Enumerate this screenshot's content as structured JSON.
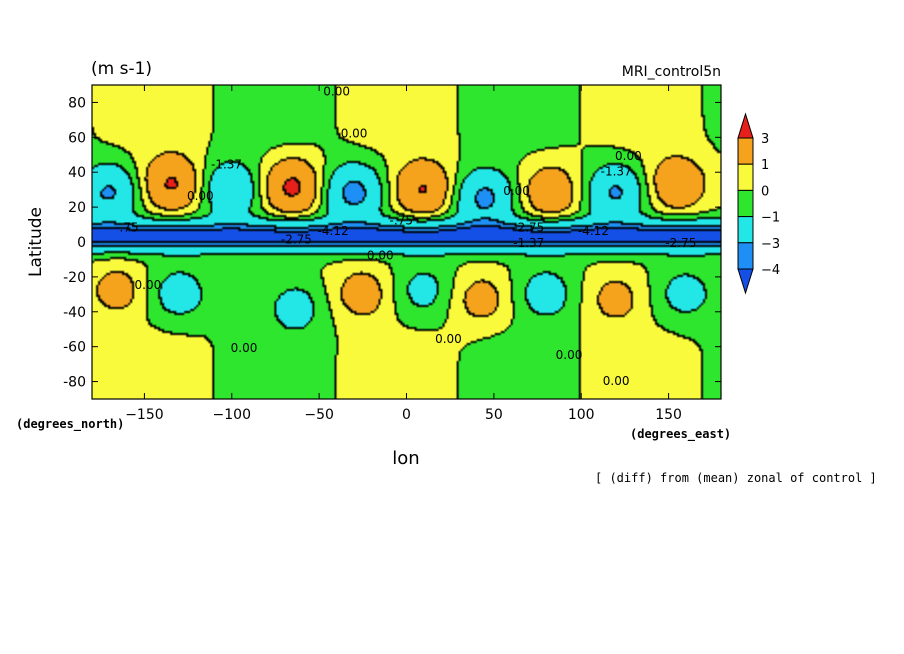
{
  "chart_data": {
    "type": "heatmap",
    "subtype": "filled-contour",
    "units_label": "(m s-1)",
    "title_right": "MRI_control5n",
    "xlabel": "lon",
    "ylabel": "Latitude",
    "x_units": "(degrees_east)",
    "y_units": "(degrees_north)",
    "footnote": "[ (diff) from (mean) zonal of control ]",
    "xlim": [
      -180,
      180
    ],
    "ylim": [
      -90,
      90
    ],
    "x_ticks": [
      -150,
      -100,
      -50,
      0,
      50,
      100,
      150
    ],
    "y_ticks": [
      80,
      60,
      40,
      20,
      0,
      -20,
      -40,
      -60,
      -80
    ],
    "x_tick_labels": [
      "−150",
      "−100",
      "−50",
      "0",
      "50",
      "100",
      "150"
    ],
    "y_tick_labels": [
      "80",
      "60",
      "40",
      "20",
      "0",
      "-20",
      "-40",
      "-60",
      "-80"
    ],
    "colorbar": {
      "levels": [
        3,
        1,
        0,
        -1,
        -3,
        -4
      ],
      "level_labels": [
        "3",
        "1",
        "0",
        "−1",
        "−3",
        "−4"
      ],
      "colors": [
        "#e8201c",
        "#f5a21d",
        "#fafa3c",
        "#2ee62e",
        "#23e6e6",
        "#1e90f5",
        "#1450e6"
      ],
      "extend": "both"
    },
    "features": [
      {
        "kind": "positive_center",
        "lon": -134,
        "lat": 33,
        "peak": 3.2
      },
      {
        "kind": "positive_center",
        "lon": -65,
        "lat": 31,
        "peak": 3.4
      },
      {
        "kind": "positive_center",
        "lon": 10,
        "lat": 30,
        "peak": 3.1
      },
      {
        "kind": "positive_center",
        "lon": 83,
        "lat": 28,
        "peak": 2.4
      },
      {
        "kind": "positive_center",
        "lon": 155,
        "lat": 33,
        "peak": 2.5
      },
      {
        "kind": "negative_center",
        "lon": -170,
        "lat": 28,
        "peak": -3.2
      },
      {
        "kind": "negative_center",
        "lon": -100,
        "lat": 30,
        "peak": -2.8
      },
      {
        "kind": "negative_center",
        "lon": -30,
        "lat": 28,
        "peak": -3.6
      },
      {
        "kind": "negative_center",
        "lon": 45,
        "lat": 25,
        "peak": -3.4
      },
      {
        "kind": "negative_center",
        "lon": 120,
        "lat": 28,
        "peak": -3.2
      },
      {
        "kind": "positive_center",
        "lon": -165,
        "lat": -28,
        "peak": 1.6
      },
      {
        "kind": "positive_center",
        "lon": -25,
        "lat": -30,
        "peak": 1.8
      },
      {
        "kind": "positive_center",
        "lon": 43,
        "lat": -33,
        "peak": 1.6
      },
      {
        "kind": "positive_center",
        "lon": 120,
        "lat": -33,
        "peak": 1.5
      },
      {
        "kind": "negative_center",
        "lon": -130,
        "lat": -30,
        "peak": -1.8
      },
      {
        "kind": "negative_center",
        "lon": -63,
        "lat": -38,
        "peak": -1.6
      },
      {
        "kind": "negative_center",
        "lon": 10,
        "lat": -28,
        "peak": -1.5
      },
      {
        "kind": "negative_center",
        "lon": 80,
        "lat": -30,
        "peak": -1.8
      },
      {
        "kind": "negative_center",
        "lon": 160,
        "lat": -30,
        "peak": -1.6
      }
    ],
    "equatorial_jet": {
      "lat": 3,
      "min": -4.6,
      "halfwidth_deg": 6
    },
    "contour_labels": [
      {
        "text": "0.00",
        "lon": -40,
        "lat": 84
      },
      {
        "text": "0.00",
        "lon": -30,
        "lat": 60
      },
      {
        "text": "0.00",
        "lon": 127,
        "lat": 47
      },
      {
        "text": "-1.37",
        "lon": -103,
        "lat": 42
      },
      {
        "text": "-1.37",
        "lon": 120,
        "lat": 38
      },
      {
        "text": "0.00",
        "lon": -118,
        "lat": 24
      },
      {
        "text": "0.00",
        "lon": 63,
        "lat": 27
      },
      {
        "text": "-.75",
        "lon": -160,
        "lat": 6
      },
      {
        "text": "-4.12",
        "lon": -42,
        "lat": 4
      },
      {
        "text": "-.75",
        "lon": -3,
        "lat": 10
      },
      {
        "text": "-2.75",
        "lon": -63,
        "lat": -1
      },
      {
        "text": "-4.12",
        "lon": 107,
        "lat": 4
      },
      {
        "text": "-2.75",
        "lon": 157,
        "lat": -3
      },
      {
        "text": "-1.37",
        "lon": 70,
        "lat": -3
      },
      {
        "text": "-2.75",
        "lon": 70,
        "lat": 6
      },
      {
        "text": "0.00",
        "lon": -148,
        "lat": -27
      },
      {
        "text": "0.00",
        "lon": -15,
        "lat": -10
      },
      {
        "text": "0.00",
        "lon": -93,
        "lat": -63
      },
      {
        "text": "0.00",
        "lon": 24,
        "lat": -58
      },
      {
        "text": "0.00",
        "lon": 93,
        "lat": -67
      },
      {
        "text": "0.00",
        "lon": 120,
        "lat": -82
      }
    ],
    "grid": false,
    "legend_placement": "right colorbar"
  }
}
